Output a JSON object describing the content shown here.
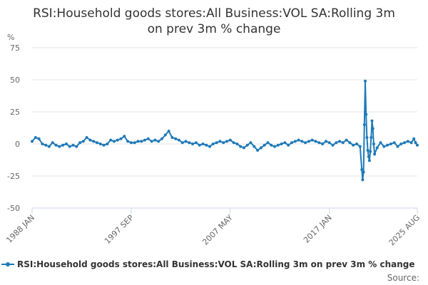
{
  "chart_data": {
    "type": "line",
    "title_line1": "RSI:Household goods stores:All Business:VOL SA:Rolling 3m",
    "title_line2": "on prev 3m % change",
    "y_unit": "%",
    "ylim": [
      -50,
      75
    ],
    "yticks": [
      75,
      50,
      25,
      0,
      -25,
      -50
    ],
    "x_range": [
      "1988 JAN",
      "2025 AUG"
    ],
    "xticks": [
      "1988 JAN",
      "1997 SEP",
      "2007 MAY",
      "2017 JAN",
      "2025 AUG"
    ],
    "grid": true,
    "legend_position": "bottom",
    "color": "#1f7ab8",
    "series": [
      {
        "name": "RSI:Household goods stores:All Business:VOL SA:Rolling 3m on prev 3m % change",
        "points": [
          [
            "1988 JAN",
            2
          ],
          [
            "1988 MAY",
            5
          ],
          [
            "1988 SEP",
            4
          ],
          [
            "1989 JAN",
            0
          ],
          [
            "1989 MAY",
            -1
          ],
          [
            "1989 SEP",
            -2
          ],
          [
            "1990 JAN",
            1
          ],
          [
            "1990 MAY",
            -1
          ],
          [
            "1990 SEP",
            -2
          ],
          [
            "1991 JAN",
            -1
          ],
          [
            "1991 MAY",
            0
          ],
          [
            "1991 SEP",
            -2
          ],
          [
            "1992 JAN",
            -1
          ],
          [
            "1992 MAY",
            -2
          ],
          [
            "1992 SEP",
            1
          ],
          [
            "1993 JAN",
            2
          ],
          [
            "1993 MAY",
            5
          ],
          [
            "1993 SEP",
            3
          ],
          [
            "1994 JAN",
            2
          ],
          [
            "1994 MAY",
            1
          ],
          [
            "1994 SEP",
            0
          ],
          [
            "1995 JAN",
            -1
          ],
          [
            "1995 MAY",
            0
          ],
          [
            "1995 SEP",
            3
          ],
          [
            "1996 JAN",
            2
          ],
          [
            "1996 MAY",
            3
          ],
          [
            "1996 SEP",
            4
          ],
          [
            "1997 JAN",
            6
          ],
          [
            "1997 MAY",
            2
          ],
          [
            "1997 SEP",
            1
          ],
          [
            "1998 JAN",
            1
          ],
          [
            "1998 MAY",
            2
          ],
          [
            "1998 SEP",
            2
          ],
          [
            "1999 JAN",
            3
          ],
          [
            "1999 MAY",
            4
          ],
          [
            "1999 SEP",
            2
          ],
          [
            "2000 JAN",
            3
          ],
          [
            "2000 MAY",
            2
          ],
          [
            "2000 SEP",
            4
          ],
          [
            "2001 JAN",
            7
          ],
          [
            "2001 MAY",
            10
          ],
          [
            "2001 SEP",
            5
          ],
          [
            "2002 JAN",
            4
          ],
          [
            "2002 MAY",
            3
          ],
          [
            "2002 SEP",
            1
          ],
          [
            "2003 JAN",
            2
          ],
          [
            "2003 MAY",
            1
          ],
          [
            "2003 SEP",
            0
          ],
          [
            "2004 JAN",
            1
          ],
          [
            "2004 MAY",
            -1
          ],
          [
            "2004 SEP",
            0
          ],
          [
            "2005 JAN",
            -1
          ],
          [
            "2005 MAY",
            -2
          ],
          [
            "2005 SEP",
            0
          ],
          [
            "2006 JAN",
            1
          ],
          [
            "2006 MAY",
            2
          ],
          [
            "2006 SEP",
            1
          ],
          [
            "2007 JAN",
            2
          ],
          [
            "2007 MAY",
            3
          ],
          [
            "2007 SEP",
            1
          ],
          [
            "2008 JAN",
            0
          ],
          [
            "2008 MAY",
            -2
          ],
          [
            "2008 SEP",
            -3
          ],
          [
            "2009 JAN",
            -1
          ],
          [
            "2009 MAY",
            1
          ],
          [
            "2009 SEP",
            -2
          ],
          [
            "2010 JAN",
            -5
          ],
          [
            "2010 MAY",
            -3
          ],
          [
            "2010 SEP",
            -1
          ],
          [
            "2011 JAN",
            1
          ],
          [
            "2011 MAY",
            -1
          ],
          [
            "2011 SEP",
            -2
          ],
          [
            "2012 JAN",
            -1
          ],
          [
            "2012 MAY",
            0
          ],
          [
            "2012 SEP",
            1
          ],
          [
            "2013 JAN",
            -1
          ],
          [
            "2013 MAY",
            1
          ],
          [
            "2013 SEP",
            2
          ],
          [
            "2014 JAN",
            3
          ],
          [
            "2014 MAY",
            2
          ],
          [
            "2014 SEP",
            1
          ],
          [
            "2015 JAN",
            2
          ],
          [
            "2015 MAY",
            3
          ],
          [
            "2015 SEP",
            2
          ],
          [
            "2016 JAN",
            1
          ],
          [
            "2016 MAY",
            0
          ],
          [
            "2016 SEP",
            2
          ],
          [
            "2017 JAN",
            1
          ],
          [
            "2017 MAY",
            -1
          ],
          [
            "2017 SEP",
            1
          ],
          [
            "2018 JAN",
            2
          ],
          [
            "2018 MAY",
            1
          ],
          [
            "2018 SEP",
            3
          ],
          [
            "2019 JAN",
            1
          ],
          [
            "2019 MAY",
            -1
          ],
          [
            "2019 SEP",
            0
          ],
          [
            "2020 JAN",
            -2
          ],
          [
            "2020 MAR",
            -20
          ],
          [
            "2020 APR",
            -28
          ],
          [
            "2020 MAY",
            -22
          ],
          [
            "2020 JUN",
            15
          ],
          [
            "2020 JUL",
            49
          ],
          [
            "2020 AUG",
            23
          ],
          [
            "2020 SEP",
            5
          ],
          [
            "2020 OCT",
            -5
          ],
          [
            "2020 NOV",
            -10
          ],
          [
            "2020 DEC",
            -13
          ],
          [
            "2021 JAN",
            -6
          ],
          [
            "2021 FEB",
            5
          ],
          [
            "2021 MAR",
            18
          ],
          [
            "2021 APR",
            12
          ],
          [
            "2021 MAY",
            0
          ],
          [
            "2021 JUN",
            -8
          ],
          [
            "2021 SEP",
            -3
          ],
          [
            "2022 JAN",
            1
          ],
          [
            "2022 MAY",
            -2
          ],
          [
            "2022 SEP",
            -1
          ],
          [
            "2023 JAN",
            0
          ],
          [
            "2023 MAY",
            1
          ],
          [
            "2023 SEP",
            -2
          ],
          [
            "2024 JAN",
            0
          ],
          [
            "2024 MAY",
            1
          ],
          [
            "2024 SEP",
            2
          ],
          [
            "2025 JAN",
            1
          ],
          [
            "2025 APR",
            4
          ],
          [
            "2025 JUN",
            1
          ],
          [
            "2025 AUG",
            -1
          ]
        ]
      }
    ],
    "source_label": "Source:"
  }
}
